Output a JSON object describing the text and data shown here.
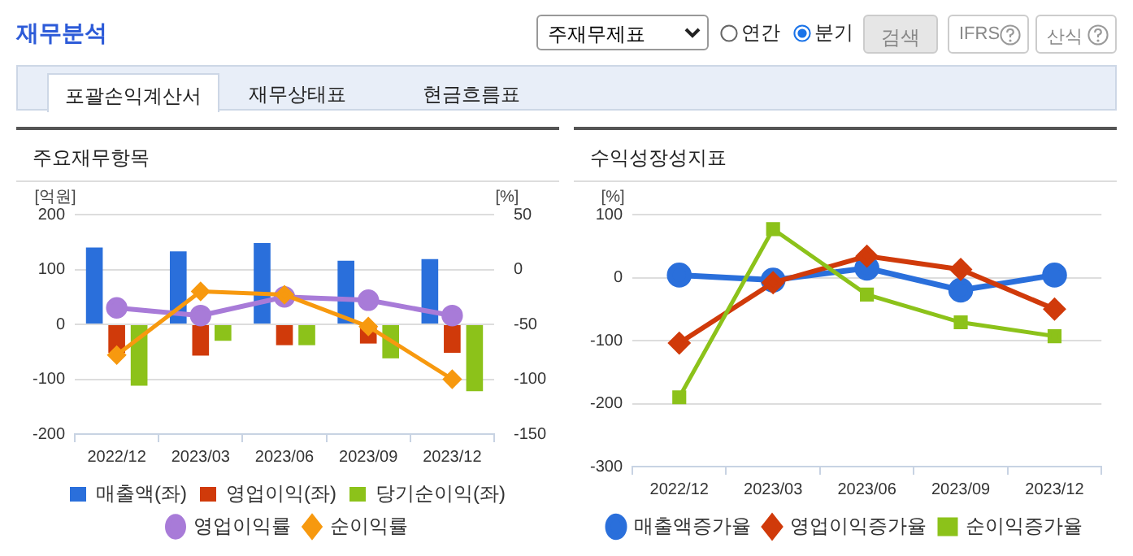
{
  "chart_data": [
    {
      "type": "other",
      "title": "재무분석",
      "annotations": [
        "주재무제표",
        "연간",
        "분기",
        "검색",
        "IFRS",
        "산식",
        "포괄손익계산서",
        "재무상태표",
        "현금흐름표"
      ]
    },
    {
      "type": "bar",
      "title": "주요재무항목",
      "ylabel": "[억원]",
      "y2label": "[%]",
      "categories": [
        "2022/12",
        "2023/03",
        "2023/06",
        "2023/09",
        "2023/12"
      ],
      "ylim": [
        -200,
        200
      ],
      "yticks": [
        -200,
        -100,
        0,
        100,
        200
      ],
      "y2lim": [
        -150,
        50
      ],
      "y2ticks": [
        -150,
        -100,
        -50,
        0,
        50
      ],
      "grid": "y",
      "legend": "bottom",
      "series": [
        {
          "name": "매출액(좌)",
          "type": "bar",
          "color": "#2a6fdb",
          "values": [
            140,
            133,
            148,
            116,
            119
          ]
        },
        {
          "name": "영업이익(좌)",
          "type": "bar",
          "color": "#d03a0a",
          "values": [
            -52,
            -57,
            -38,
            -35,
            -52
          ]
        },
        {
          "name": "당기순이익(좌)",
          "type": "bar",
          "color": "#8cc21a",
          "values": [
            -112,
            -30,
            -38,
            -62,
            -122
          ]
        },
        {
          "name": "영업이익률",
          "type": "line",
          "axis": "y2",
          "color": "#a87bd8",
          "marker": "circle",
          "values": [
            -35,
            -42,
            -25,
            -28,
            -42
          ]
        },
        {
          "name": "순이익률",
          "type": "line",
          "axis": "y2",
          "color": "#f7990f",
          "marker": "diamond",
          "values": [
            -78,
            -20,
            -23,
            -52,
            -100
          ]
        }
      ]
    },
    {
      "type": "line",
      "title": "수익성장성지표",
      "ylabel": "[%]",
      "categories": [
        "2022/12",
        "2023/03",
        "2023/06",
        "2023/09",
        "2023/12"
      ],
      "ylim": [
        -300,
        100
      ],
      "yticks": [
        -300,
        -200,
        -100,
        0,
        100
      ],
      "grid": "y",
      "legend": "bottom",
      "series": [
        {
          "name": "매출액증가율",
          "color": "#2a6fdb",
          "marker": "circle",
          "values": [
            4,
            -4,
            15,
            -20,
            4
          ]
        },
        {
          "name": "영업이익증가율",
          "color": "#d03a0a",
          "marker": "diamond",
          "values": [
            -104,
            -8,
            34,
            13,
            -50
          ]
        },
        {
          "name": "순이익증가율",
          "color": "#8cc21a",
          "marker": "square",
          "values": [
            -190,
            77,
            -27,
            -71,
            -93
          ]
        }
      ]
    }
  ]
}
